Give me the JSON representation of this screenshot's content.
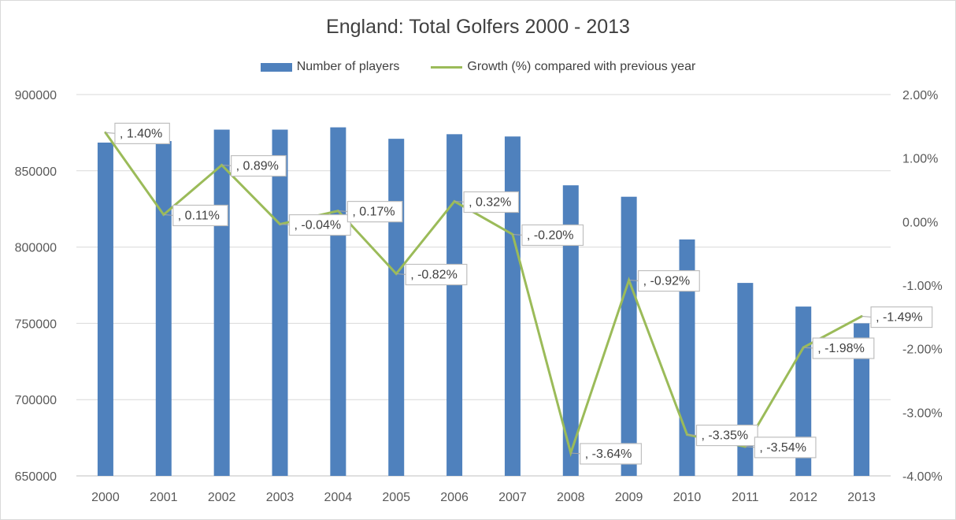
{
  "chart_data": {
    "type": "bar",
    "title": "England: Total Golfers 2000 - 2013",
    "categories": [
      "2000",
      "2001",
      "2002",
      "2003",
      "2004",
      "2005",
      "2006",
      "2007",
      "2008",
      "2009",
      "2010",
      "2011",
      "2012",
      "2013"
    ],
    "series": [
      {
        "name": "Number of players",
        "type": "bar",
        "axis": "left",
        "color": "#4f81bd",
        "values": [
          868500,
          869500,
          877000,
          877000,
          878500,
          871000,
          874000,
          872500,
          840500,
          833000,
          805000,
          776500,
          761000,
          750000
        ]
      },
      {
        "name": "Growth (%) compared with previous year",
        "type": "line",
        "axis": "right",
        "color": "#9bbb59",
        "values": [
          1.4,
          0.11,
          0.89,
          -0.04,
          0.17,
          -0.82,
          0.32,
          -0.2,
          -3.64,
          -0.92,
          -3.35,
          -3.54,
          -1.98,
          -1.49
        ],
        "labels": [
          ", 1.40%",
          ", 0.11%",
          ", 0.89%",
          ", -0.04%",
          ", 0.17%",
          ", -0.82%",
          ", 0.32%",
          ", -0.20%",
          ", -3.64%",
          ", -0.92%",
          ", -3.35%",
          ", -3.54%",
          ", -1.98%",
          ", -1.49%"
        ]
      }
    ],
    "y_left": {
      "min": 650000,
      "max": 900000,
      "ticks": [
        "900000",
        "850000",
        "800000",
        "750000",
        "700000",
        "650000"
      ]
    },
    "y_right": {
      "min": -4,
      "max": 2,
      "ticks": [
        "2.00%",
        "1.00%",
        "0.00%",
        "-1.00%",
        "-2.00%",
        "-3.00%",
        "-4.00%"
      ]
    },
    "legend_position": "top",
    "grid": true
  }
}
